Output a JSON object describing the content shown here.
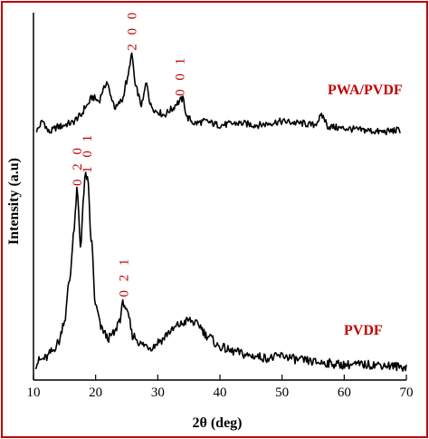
{
  "chart_data": {
    "type": "line",
    "xlabel": "2θ (deg)",
    "ylabel": "Intensity (a.u)",
    "xlim": [
      10,
      70
    ],
    "xticks": [
      "10",
      "20",
      "30",
      "40",
      "50",
      "60",
      "70"
    ],
    "y_axis_tick_labels": false,
    "grid": false,
    "colors": {
      "frame": "#c00000",
      "annotation": "#c00000",
      "line": "#000000"
    },
    "series": [
      {
        "name": "PWA/PVDF",
        "x": [
          10.5,
          11.5,
          12.5,
          14,
          16,
          17.5,
          18.5,
          19.5,
          20.5,
          21.2,
          21.8,
          22.5,
          23.2,
          24.2,
          25.0,
          25.8,
          26.5,
          27.4,
          28.2,
          28.9,
          29.8,
          31,
          32.2,
          33.2,
          34.0,
          34.8,
          36,
          37.5,
          40,
          43,
          46,
          50,
          53,
          55,
          56.5,
          57.5,
          60,
          63,
          66,
          69
        ],
        "values": [
          5,
          10,
          4,
          7,
          9,
          13,
          19,
          24,
          22,
          28,
          33,
          24,
          18,
          22,
          33,
          48,
          29,
          20,
          32,
          19,
          16,
          14,
          17,
          21,
          23,
          12,
          9,
          10,
          8,
          9,
          8,
          10,
          9,
          8,
          13,
          7,
          6,
          5,
          4,
          5
        ]
      },
      {
        "name": "PVDF",
        "x": [
          10.3,
          11,
          12,
          13,
          14,
          15,
          15.8,
          16.5,
          17.0,
          17.6,
          18.0,
          18.4,
          18.7,
          19.3,
          20,
          21,
          22,
          23,
          23.8,
          24.5,
          25.2,
          26,
          27.5,
          29,
          30.5,
          32,
          33.5,
          35,
          36.5,
          38,
          40,
          42,
          45,
          48,
          50,
          53,
          56,
          60,
          65,
          70
        ],
        "values": [
          2,
          4,
          5,
          8,
          12,
          22,
          40,
          62,
          80,
          55,
          76,
          88,
          85,
          58,
          28,
          18,
          14,
          16,
          22,
          30,
          24,
          15,
          11,
          10,
          13,
          17,
          20,
          22,
          20,
          15,
          10,
          8,
          6,
          5,
          6,
          4,
          3,
          2,
          2,
          1
        ]
      }
    ],
    "annotations": [
      {
        "text": "2 0 0",
        "x": 25.8,
        "series": "PWA/PVDF",
        "orientation": "vertical"
      },
      {
        "text": "0 0 1",
        "x": 33.5,
        "series": "PWA/PVDF",
        "orientation": "vertical"
      },
      {
        "text": "0 2 0",
        "x": 17.0,
        "series": "PVDF",
        "orientation": "vertical"
      },
      {
        "text": "1 0 1",
        "x": 18.6,
        "series": "PVDF",
        "orientation": "vertical"
      },
      {
        "text": "0 2 1",
        "x": 24.5,
        "series": "PVDF",
        "orientation": "vertical"
      }
    ]
  }
}
